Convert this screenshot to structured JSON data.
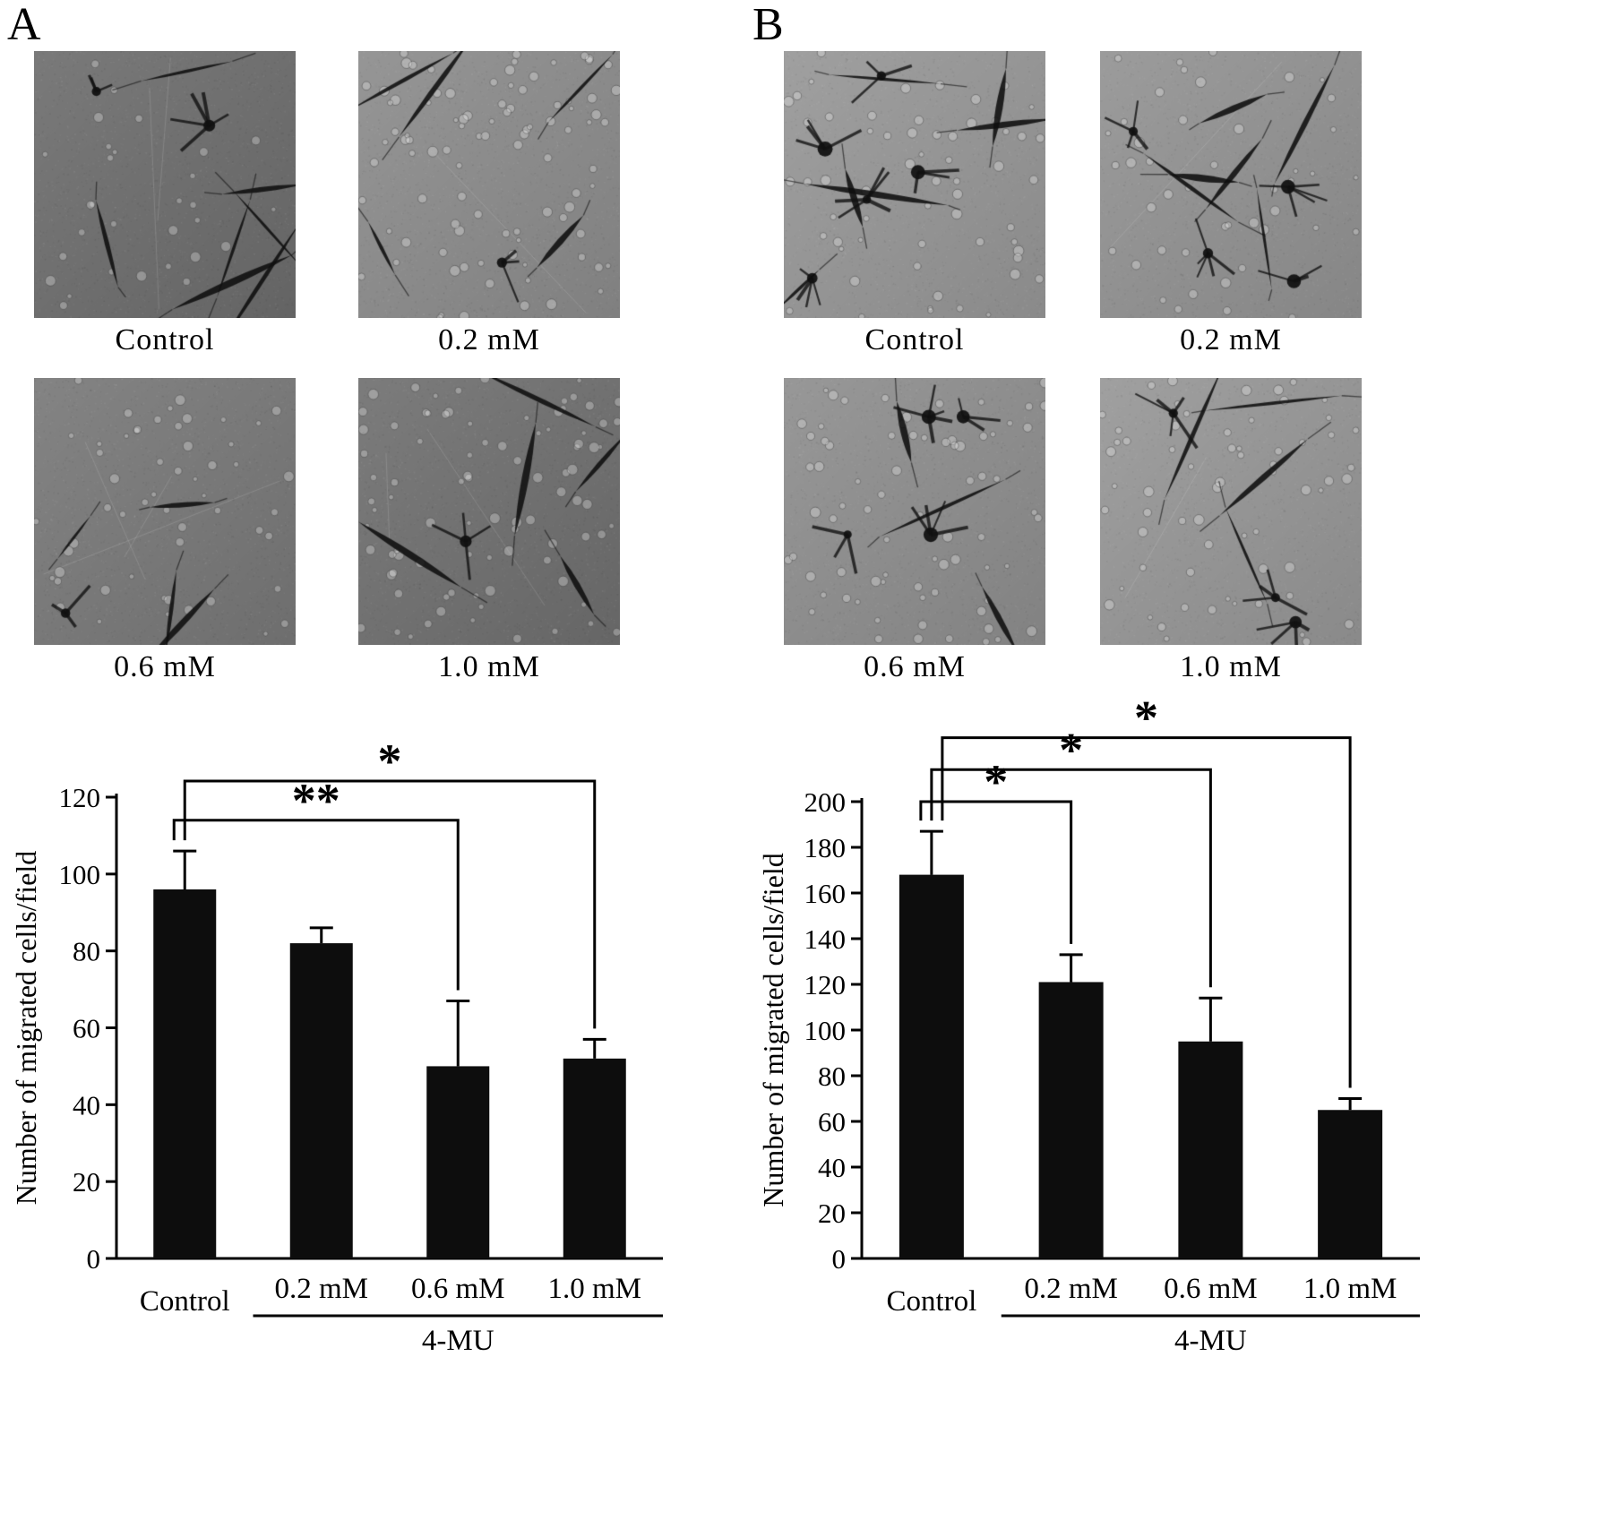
{
  "figure": {
    "panels": [
      {
        "label": "A",
        "micrographs": [
          {
            "label": "Control"
          },
          {
            "label": "0.2 mM"
          },
          {
            "label": "0.6 mM"
          },
          {
            "label": "1.0 mM"
          }
        ]
      },
      {
        "label": "B",
        "micrographs": [
          {
            "label": "Control"
          },
          {
            "label": "0.2 mM"
          },
          {
            "label": "0.6 mM"
          },
          {
            "label": "1.0 mM"
          }
        ]
      }
    ]
  },
  "chart_data": [
    {
      "type": "bar",
      "panel": "A",
      "categories": [
        "Control",
        "0.2 mM",
        "0.6 mM",
        "1.0 mM"
      ],
      "values": [
        96,
        82,
        50,
        52
      ],
      "errors": [
        10,
        4,
        17,
        5
      ],
      "ylabel": "Number of migrated cells/field",
      "xlabel": "",
      "group_label": "4-MU",
      "ylim": [
        0,
        120
      ],
      "yticks": [
        0,
        20,
        40,
        60,
        80,
        100,
        120
      ],
      "bar_color": "#0d0d0d",
      "grid": false,
      "legend": "none",
      "significance": [
        {
          "from": 0,
          "to": 2,
          "label": "**"
        },
        {
          "from": 0,
          "to": 3,
          "label": "*"
        }
      ]
    },
    {
      "type": "bar",
      "panel": "B",
      "categories": [
        "Control",
        "0.2 mM",
        "0.6 mM",
        "1.0 mM"
      ],
      "values": [
        168,
        121,
        95,
        65
      ],
      "errors": [
        19,
        12,
        19,
        5
      ],
      "ylabel": "Number of migrated cells/field",
      "xlabel": "",
      "group_label": "4-MU",
      "ylim": [
        0,
        200
      ],
      "yticks": [
        0,
        20,
        40,
        60,
        80,
        100,
        120,
        140,
        160,
        180,
        200
      ],
      "bar_color": "#0d0d0d",
      "grid": false,
      "legend": "none",
      "significance": [
        {
          "from": 0,
          "to": 1,
          "label": "*"
        },
        {
          "from": 0,
          "to": 2,
          "label": "*"
        },
        {
          "from": 0,
          "to": 3,
          "label": "*"
        }
      ]
    }
  ]
}
